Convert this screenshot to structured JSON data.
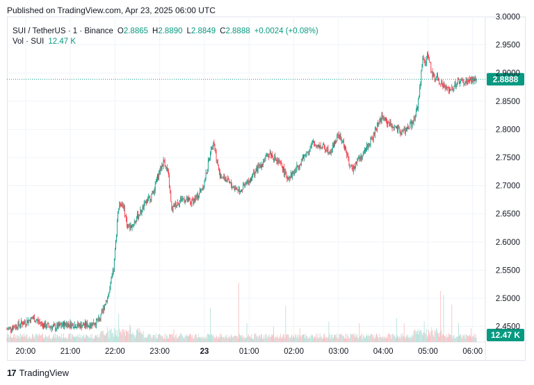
{
  "published": "Published on TradingView.com, Apr 23, 2025 06:00 UTC",
  "legend": {
    "symbol": "SUI / TetherUS · 1 · Binance",
    "o_key": "O",
    "o_val": "2.8865",
    "h_key": "H",
    "h_val": "2.8890",
    "l_key": "L",
    "l_val": "2.8849",
    "c_key": "C",
    "c_val": "2.8888",
    "change": "+0.0024 (+0.08%)",
    "vol_label": "Vol · SUI",
    "vol_val": "12.47 K"
  },
  "colors": {
    "up": "#089981",
    "down": "#f23645",
    "vol_up": "#a8ddd4",
    "vol_down": "#f7b4b9",
    "grid": "#f0f3fa"
  },
  "footer": {
    "logo_mark": "17",
    "brand": "TradingView"
  },
  "chart_data": {
    "type": "candlestick",
    "y_ticks": [
      "3.0000",
      "2.9500",
      "2.9000",
      "2.8500",
      "2.8000",
      "2.7500",
      "2.7000",
      "2.6500",
      "2.6000",
      "2.5500",
      "2.5000",
      "2.4500"
    ],
    "y_tick_values": [
      3.0,
      2.95,
      2.9,
      2.85,
      2.8,
      2.75,
      2.7,
      2.65,
      2.6,
      2.55,
      2.5,
      2.45
    ],
    "ylim": [
      2.4225,
      3.0
    ],
    "x_ticks": [
      "20:00",
      "21:00",
      "22:00",
      "23:00",
      "23",
      "01:00",
      "02:00",
      "03:00",
      "04:00",
      "05:00",
      "06:00"
    ],
    "x_tick_minutes": [
      0,
      60,
      120,
      180,
      240,
      300,
      360,
      420,
      480,
      540,
      600
    ],
    "xlim_minutes": [
      -25,
      617
    ],
    "current_price": 2.8888,
    "current_price_label": "2.8888",
    "volume_label": "12.47 K",
    "anchors": [
      [
        -25,
        2.445
      ],
      [
        0,
        2.458
      ],
      [
        10,
        2.465
      ],
      [
        25,
        2.452
      ],
      [
        40,
        2.448
      ],
      [
        55,
        2.455
      ],
      [
        70,
        2.452
      ],
      [
        85,
        2.453
      ],
      [
        95,
        2.458
      ],
      [
        100,
        2.462
      ],
      [
        105,
        2.485
      ],
      [
        112,
        2.51
      ],
      [
        118,
        2.55
      ],
      [
        121,
        2.6
      ],
      [
        124,
        2.655
      ],
      [
        127,
        2.67
      ],
      [
        131,
        2.665
      ],
      [
        136,
        2.632
      ],
      [
        140,
        2.625
      ],
      [
        148,
        2.64
      ],
      [
        160,
        2.665
      ],
      [
        172,
        2.69
      ],
      [
        178,
        2.72
      ],
      [
        186,
        2.745
      ],
      [
        192,
        2.715
      ],
      [
        196,
        2.655
      ],
      [
        200,
        2.665
      ],
      [
        210,
        2.677
      ],
      [
        222,
        2.67
      ],
      [
        230,
        2.68
      ],
      [
        240,
        2.705
      ],
      [
        248,
        2.76
      ],
      [
        252,
        2.78
      ],
      [
        256,
        2.75
      ],
      [
        260,
        2.72
      ],
      [
        268,
        2.712
      ],
      [
        278,
        2.698
      ],
      [
        288,
        2.692
      ],
      [
        298,
        2.705
      ],
      [
        310,
        2.728
      ],
      [
        320,
        2.745
      ],
      [
        328,
        2.758
      ],
      [
        336,
        2.745
      ],
      [
        344,
        2.735
      ],
      [
        350,
        2.715
      ],
      [
        358,
        2.72
      ],
      [
        368,
        2.74
      ],
      [
        378,
        2.76
      ],
      [
        386,
        2.775
      ],
      [
        392,
        2.772
      ],
      [
        400,
        2.768
      ],
      [
        410,
        2.762
      ],
      [
        416,
        2.78
      ],
      [
        420,
        2.79
      ],
      [
        428,
        2.77
      ],
      [
        434,
        2.74
      ],
      [
        438,
        2.728
      ],
      [
        444,
        2.745
      ],
      [
        452,
        2.752
      ],
      [
        458,
        2.77
      ],
      [
        466,
        2.785
      ],
      [
        472,
        2.808
      ],
      [
        478,
        2.822
      ],
      [
        486,
        2.812
      ],
      [
        494,
        2.805
      ],
      [
        502,
        2.795
      ],
      [
        510,
        2.798
      ],
      [
        520,
        2.812
      ],
      [
        526,
        2.842
      ],
      [
        530,
        2.885
      ],
      [
        533,
        2.925
      ],
      [
        536,
        2.918
      ],
      [
        540,
        2.932
      ],
      [
        546,
        2.895
      ],
      [
        552,
        2.892
      ],
      [
        560,
        2.878
      ],
      [
        566,
        2.87
      ],
      [
        572,
        2.873
      ],
      [
        580,
        2.885
      ],
      [
        590,
        2.883
      ],
      [
        598,
        2.888
      ],
      [
        605,
        2.8888
      ]
    ],
    "volume_spikes": [
      [
        125,
        0.45
      ],
      [
        140,
        0.28
      ],
      [
        153,
        0.22
      ],
      [
        199,
        0.2
      ],
      [
        248,
        0.55
      ],
      [
        286,
        0.95
      ],
      [
        297,
        0.3
      ],
      [
        333,
        0.25
      ],
      [
        349,
        0.58
      ],
      [
        368,
        0.22
      ],
      [
        407,
        0.33
      ],
      [
        448,
        0.3
      ],
      [
        498,
        0.38
      ],
      [
        508,
        0.3
      ],
      [
        535,
        0.33
      ],
      [
        557,
        0.82
      ],
      [
        561,
        0.75
      ],
      [
        572,
        0.6
      ],
      [
        581,
        0.3
      ],
      [
        598,
        0.22
      ]
    ]
  }
}
